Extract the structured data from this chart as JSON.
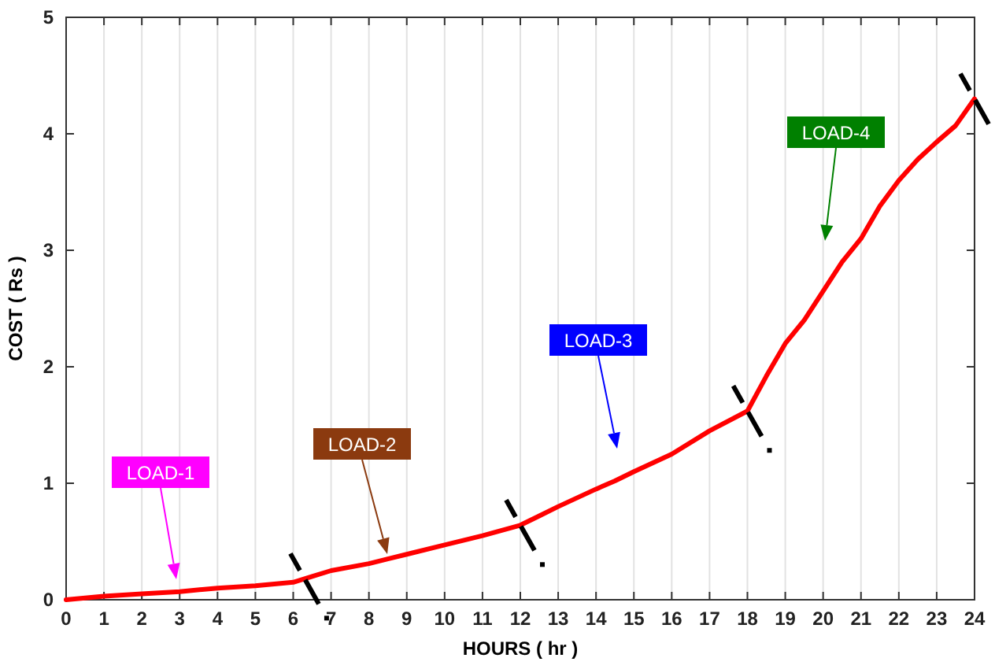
{
  "chart_data": {
    "type": "line",
    "xlabel": "HOURS ( hr )",
    "ylabel": "COST ( Rs )",
    "x": [
      0,
      1,
      2,
      3,
      4,
      5,
      6,
      6.5,
      7,
      8,
      8.5,
      9,
      10,
      11,
      12,
      12.5,
      13,
      14,
      14.5,
      15,
      16,
      17,
      18,
      18.5,
      19,
      19.5,
      20,
      20.5,
      21,
      21.5,
      22,
      22.5,
      23,
      23.5,
      24
    ],
    "series": [
      {
        "color": "#ff0000",
        "values": [
          0,
          0.03,
          0.05,
          0.07,
          0.1,
          0.12,
          0.15,
          0.2,
          0.25,
          0.31,
          0.35,
          0.39,
          0.47,
          0.55,
          0.64,
          0.72,
          0.8,
          0.95,
          1.02,
          1.1,
          1.25,
          1.45,
          1.62,
          1.92,
          2.2,
          2.4,
          2.65,
          2.9,
          3.1,
          3.38,
          3.6,
          3.78,
          3.93,
          4.07,
          4.3
        ]
      }
    ],
    "xlim": [
      0,
      24
    ],
    "xticks": [
      0,
      1,
      2,
      3,
      4,
      5,
      6,
      7,
      8,
      9,
      10,
      11,
      12,
      13,
      14,
      15,
      16,
      17,
      18,
      19,
      20,
      21,
      22,
      23,
      24
    ],
    "ylim": [
      0,
      5
    ],
    "yticks": [
      0,
      1,
      2,
      3,
      4,
      5
    ],
    "grid": "x",
    "line_style": "solid",
    "marker": "none",
    "annotations": [
      "LOAD-1",
      "LOAD-2",
      "LOAD-3",
      "LOAD-4"
    ]
  }
}
